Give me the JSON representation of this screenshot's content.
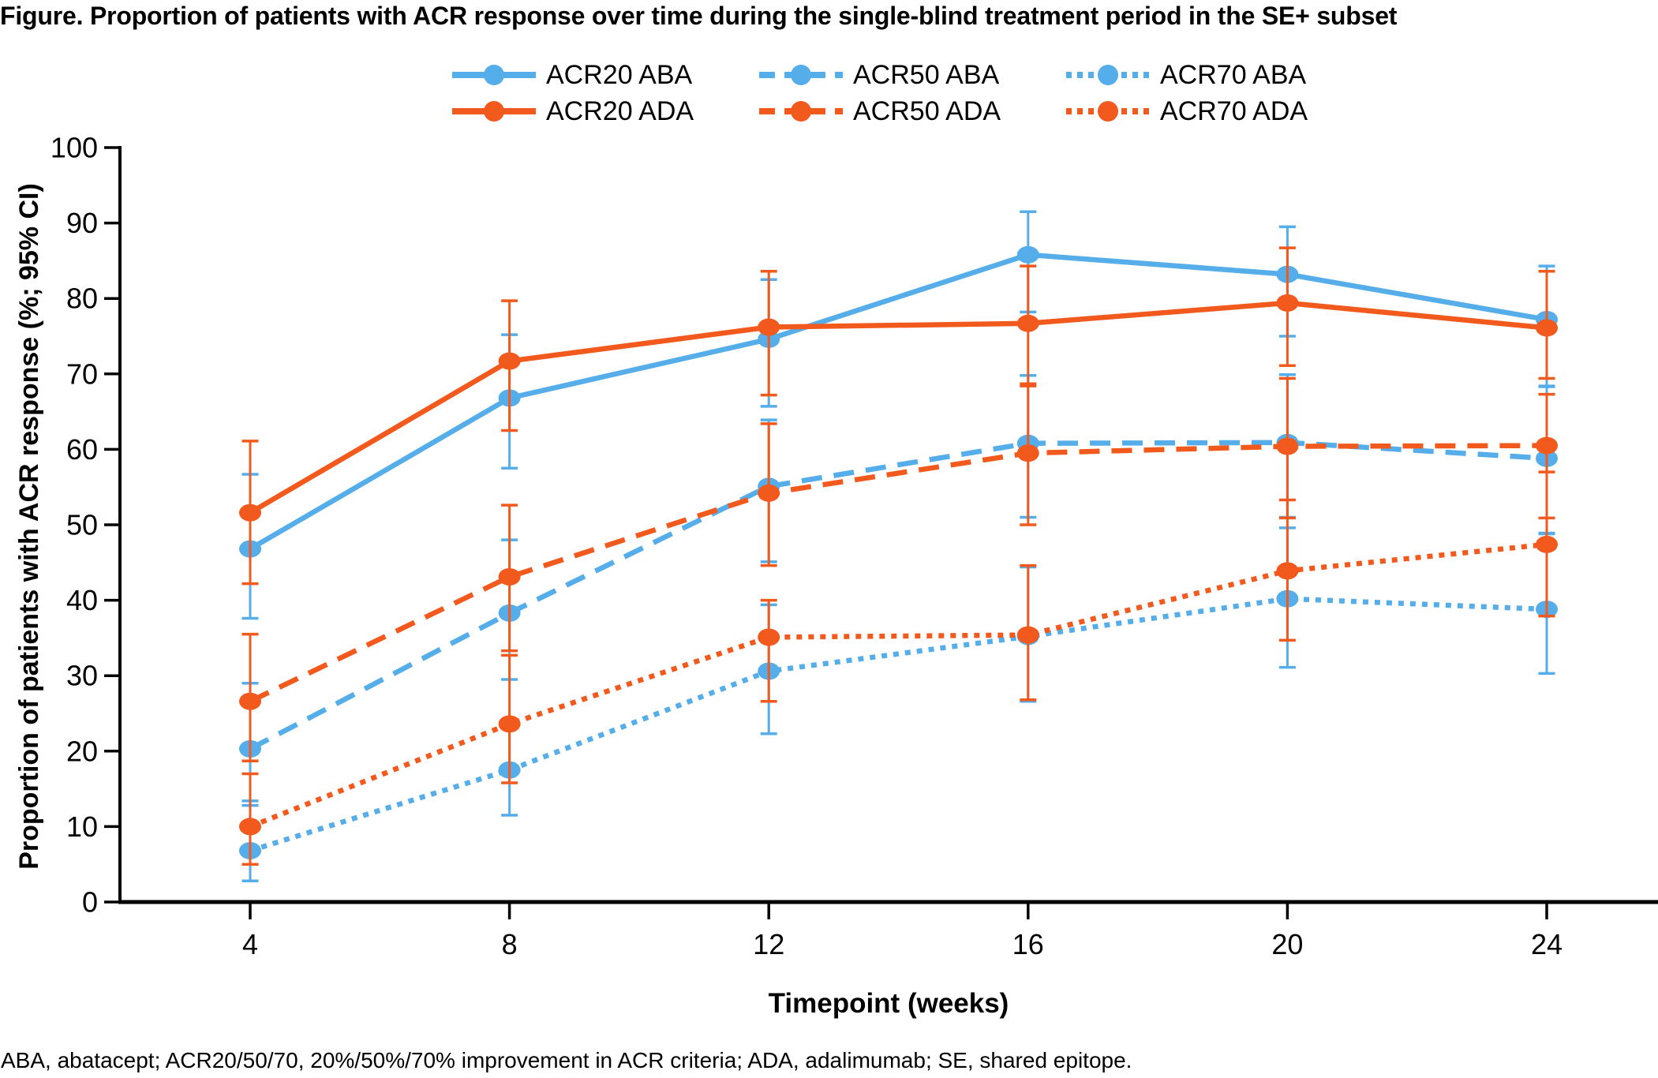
{
  "title": "Figure. Proportion of patients with ACR response over time during the single-blind treatment period in the SE+ subset",
  "footnote": "ABA, abatacept; ACR20/50/70, 20%/50%/70% improvement in ACR criteria; ADA, adalimumab; SE, shared epitope.",
  "axes": {
    "x_label": "Timepoint (weeks)",
    "y_label": "Proportion of patients with ACR response (%; 95% CI)",
    "x_ticks": [
      4,
      8,
      12,
      16,
      20,
      24
    ],
    "y_ticks": [
      0,
      10,
      20,
      30,
      40,
      50,
      60,
      70,
      80,
      90,
      100
    ]
  },
  "colors": {
    "aba": "#55ADE9",
    "ada": "#F2591D",
    "axis": "#000000",
    "text": "#000000",
    "background": "#FFFFFF"
  },
  "legend": {
    "position": "top-center",
    "items": [
      {
        "label": "ACR20 ABA",
        "color_key": "aba",
        "style": "solid"
      },
      {
        "label": "ACR50 ABA",
        "color_key": "aba",
        "style": "dashed"
      },
      {
        "label": "ACR70 ABA",
        "color_key": "aba",
        "style": "dotted"
      },
      {
        "label": "ACR20 ADA",
        "color_key": "ada",
        "style": "solid"
      },
      {
        "label": "ACR50 ADA",
        "color_key": "ada",
        "style": "dashed"
      },
      {
        "label": "ACR70 ADA",
        "color_key": "ada",
        "style": "dotted"
      }
    ]
  },
  "chart_data": {
    "type": "line",
    "title": "Proportion of patients with ACR response over time during the single-blind treatment period in the SE+ subset",
    "xlabel": "Timepoint (weeks)",
    "ylabel": "Proportion of patients with ACR response (%; 95% CI)",
    "x": [
      4,
      8,
      12,
      16,
      20,
      24
    ],
    "xlim": [
      2,
      25.7
    ],
    "ylim": [
      0,
      100
    ],
    "grid": false,
    "error_bars": "95% CI with whisker caps",
    "legend_position": "top-center",
    "series": [
      {
        "name": "ACR20 ABA",
        "drug": "abatacept",
        "color_key": "aba",
        "line_style": "solid",
        "values": [
          46.8,
          66.8,
          74.6,
          85.8,
          83.2,
          77.2
        ],
        "ci_low": [
          37.6,
          57.5,
          65.7,
          78.2,
          75.0,
          68.4
        ],
        "ci_high": [
          56.7,
          75.2,
          82.5,
          91.5,
          89.5,
          84.3
        ]
      },
      {
        "name": "ACR20 ADA",
        "drug": "adalimumab",
        "color_key": "ada",
        "line_style": "solid",
        "values": [
          51.6,
          71.7,
          76.2,
          76.7,
          79.4,
          76.1
        ],
        "ci_low": [
          42.2,
          62.5,
          67.2,
          68.7,
          71.1,
          69.4
        ],
        "ci_high": [
          61.1,
          79.7,
          83.6,
          84.3,
          86.7,
          83.6
        ]
      },
      {
        "name": "ACR50 ABA",
        "drug": "abatacept",
        "color_key": "aba",
        "line_style": "dashed",
        "values": [
          20.3,
          38.3,
          55.1,
          60.8,
          60.9,
          58.8
        ],
        "ci_low": [
          13.4,
          29.5,
          45.1,
          51.0,
          51.0,
          48.9
        ],
        "ci_high": [
          29.0,
          48.0,
          63.9,
          69.8,
          69.9,
          68.3
        ]
      },
      {
        "name": "ACR50 ADA",
        "drug": "adalimumab",
        "color_key": "ada",
        "line_style": "dashed",
        "values": [
          26.6,
          43.1,
          54.2,
          59.5,
          60.4,
          60.5
        ],
        "ci_low": [
          18.7,
          33.3,
          44.6,
          50.0,
          50.9,
          50.9
        ],
        "ci_high": [
          35.5,
          52.6,
          63.4,
          68.4,
          69.4,
          67.3
        ]
      },
      {
        "name": "ACR70 ABA",
        "drug": "abatacept",
        "color_key": "aba",
        "line_style": "dotted",
        "values": [
          6.8,
          17.5,
          30.6,
          35.2,
          40.2,
          38.8
        ],
        "ci_low": [
          2.8,
          11.5,
          22.3,
          26.6,
          31.1,
          30.3
        ],
        "ci_high": [
          12.8,
          24.2,
          39.4,
          44.4,
          49.6,
          48.8
        ]
      },
      {
        "name": "ACR70 ADA",
        "drug": "adalimumab",
        "color_key": "ada",
        "line_style": "dotted",
        "values": [
          10.0,
          23.6,
          35.1,
          35.4,
          43.9,
          47.4
        ],
        "ci_low": [
          5.0,
          15.8,
          26.6,
          26.8,
          34.7,
          37.9
        ],
        "ci_high": [
          17.0,
          32.7,
          40.0,
          44.6,
          53.3,
          57.0
        ]
      }
    ]
  }
}
